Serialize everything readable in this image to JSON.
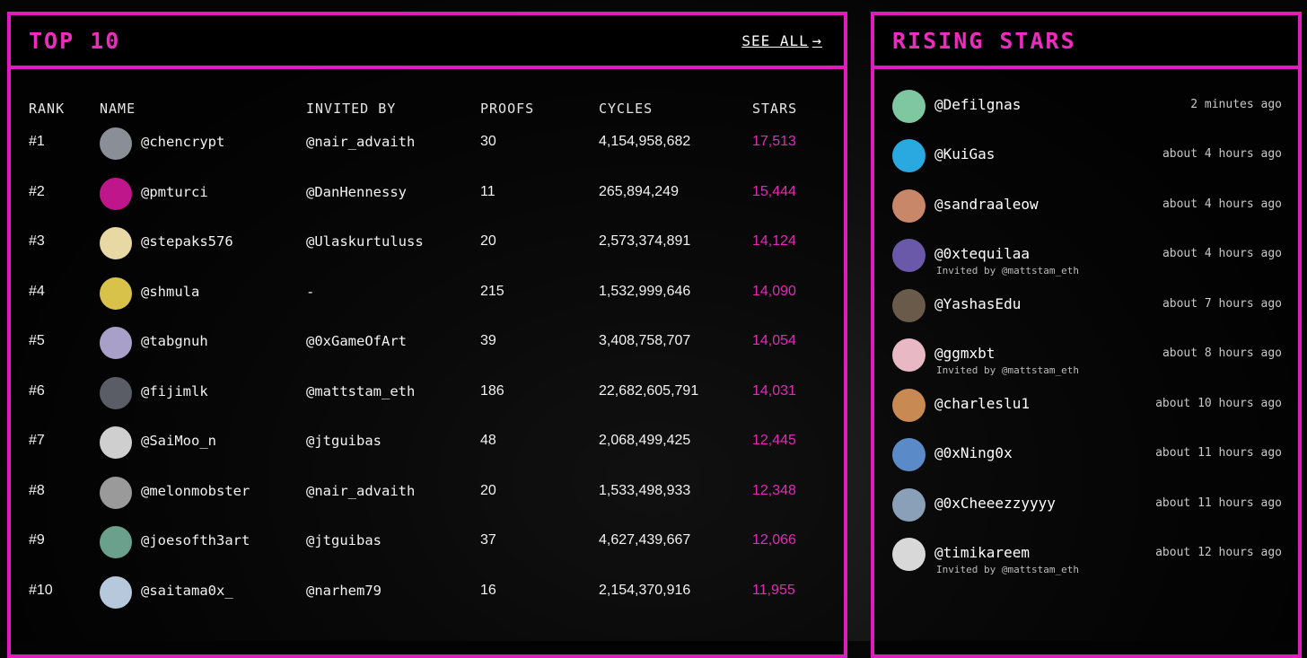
{
  "top10": {
    "title": "TOP 10",
    "see_all": "SEE ALL",
    "columns": [
      "RANK",
      "NAME",
      "INVITED BY",
      "PROOFS",
      "CYCLES",
      "STARS"
    ],
    "rows": [
      {
        "rank": "#1",
        "name": "@chencrypt",
        "invited_by": "@nair_advaith",
        "proofs": "30",
        "cycles": "4,154,958,682",
        "stars": "17,513",
        "avatar_color": "#8a8f97"
      },
      {
        "rank": "#2",
        "name": "@pmturci",
        "invited_by": "@DanHennessy",
        "proofs": "11",
        "cycles": "265,894,249",
        "stars": "15,444",
        "avatar_color": "#c0168c"
      },
      {
        "rank": "#3",
        "name": "@stepaks576",
        "invited_by": "@Ulaskurtuluss",
        "proofs": "20",
        "cycles": "2,573,374,891",
        "stars": "14,124",
        "avatar_color": "#e8d9a4"
      },
      {
        "rank": "#4",
        "name": "@shmula",
        "invited_by": "-",
        "proofs": "215",
        "cycles": "1,532,999,646",
        "stars": "14,090",
        "avatar_color": "#d8c24a"
      },
      {
        "rank": "#5",
        "name": "@tabgnuh",
        "invited_by": "@0xGameOfArt",
        "proofs": "39",
        "cycles": "3,408,758,707",
        "stars": "14,054",
        "avatar_color": "#a8a0c8"
      },
      {
        "rank": "#6",
        "name": "@fijimlk",
        "invited_by": "@mattstam_eth",
        "proofs": "186",
        "cycles": "22,682,605,791",
        "stars": "14,031",
        "avatar_color": "#5a5c66"
      },
      {
        "rank": "#7",
        "name": "@SaiMoo_n",
        "invited_by": "@jtguibas",
        "proofs": "48",
        "cycles": "2,068,499,425",
        "stars": "12,445",
        "avatar_color": "#cfcfcf"
      },
      {
        "rank": "#8",
        "name": "@melonmobster",
        "invited_by": "@nair_advaith",
        "proofs": "20",
        "cycles": "1,533,498,933",
        "stars": "12,348",
        "avatar_color": "#9a9a9a"
      },
      {
        "rank": "#9",
        "name": "@joesofth3art",
        "invited_by": "@jtguibas",
        "proofs": "37",
        "cycles": "4,627,439,667",
        "stars": "12,066",
        "avatar_color": "#6aa08c"
      },
      {
        "rank": "#10",
        "name": "@saitama0x_",
        "invited_by": "@narhem79",
        "proofs": "16",
        "cycles": "2,154,370,916",
        "stars": "11,955",
        "avatar_color": "#b6c8dc"
      }
    ]
  },
  "rising": {
    "title": "RISING STARS",
    "items": [
      {
        "name": "@Defilgnas",
        "time": "2 minutes ago",
        "invited": "",
        "avatar_color": "#7fc7a0"
      },
      {
        "name": "@KuiGas",
        "time": "about 4 hours ago",
        "invited": "",
        "avatar_color": "#2aa8e0"
      },
      {
        "name": "@sandraaleow",
        "time": "about 4 hours ago",
        "invited": "",
        "avatar_color": "#c9876a"
      },
      {
        "name": "@0xtequilaa",
        "time": "about 4 hours ago",
        "invited": "Invited by @mattstam_eth",
        "avatar_color": "#6a58a8"
      },
      {
        "name": "@YashasEdu",
        "time": "about 7 hours ago",
        "invited": "",
        "avatar_color": "#6a5a4a"
      },
      {
        "name": "@ggmxbt",
        "time": "about 8 hours ago",
        "invited": "Invited by @mattstam_eth",
        "avatar_color": "#e8b8c4"
      },
      {
        "name": "@charleslu1",
        "time": "about 10 hours ago",
        "invited": "",
        "avatar_color": "#c88a52"
      },
      {
        "name": "@0xNing0x",
        "time": "about 11 hours ago",
        "invited": "",
        "avatar_color": "#5a8ac8"
      },
      {
        "name": "@0xCheeezzyyyy",
        "time": "about 11 hours ago",
        "invited": "",
        "avatar_color": "#8aa0b8"
      },
      {
        "name": "@timikareem",
        "time": "about 12 hours ago",
        "invited": "Invited by @mattstam_eth",
        "avatar_color": "#d8d8d8"
      }
    ]
  },
  "colors": {
    "accent": "#e21bbf",
    "stars": "#e428b8"
  }
}
